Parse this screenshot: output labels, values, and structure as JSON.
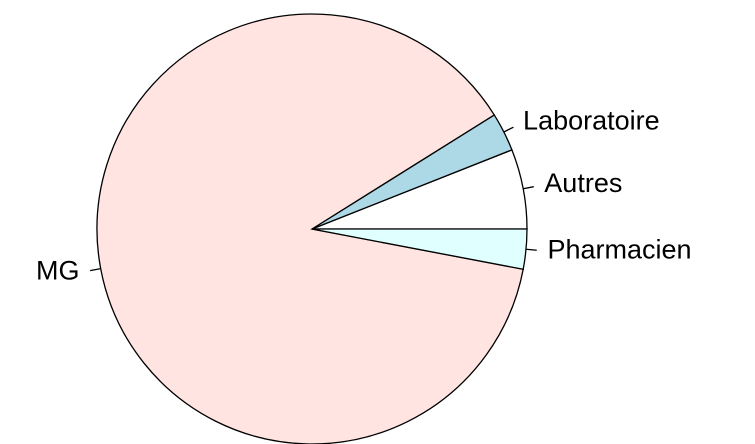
{
  "chart_data": {
    "type": "pie",
    "categories": [
      "Autres",
      "Laboratoire",
      "MG",
      "Pharmacien"
    ],
    "values": [
      6,
      2.9,
      88.1,
      3
    ],
    "colors": [
      "#ffffff",
      "#add8e6",
      "#ffe4e1",
      "#e0ffff"
    ]
  }
}
